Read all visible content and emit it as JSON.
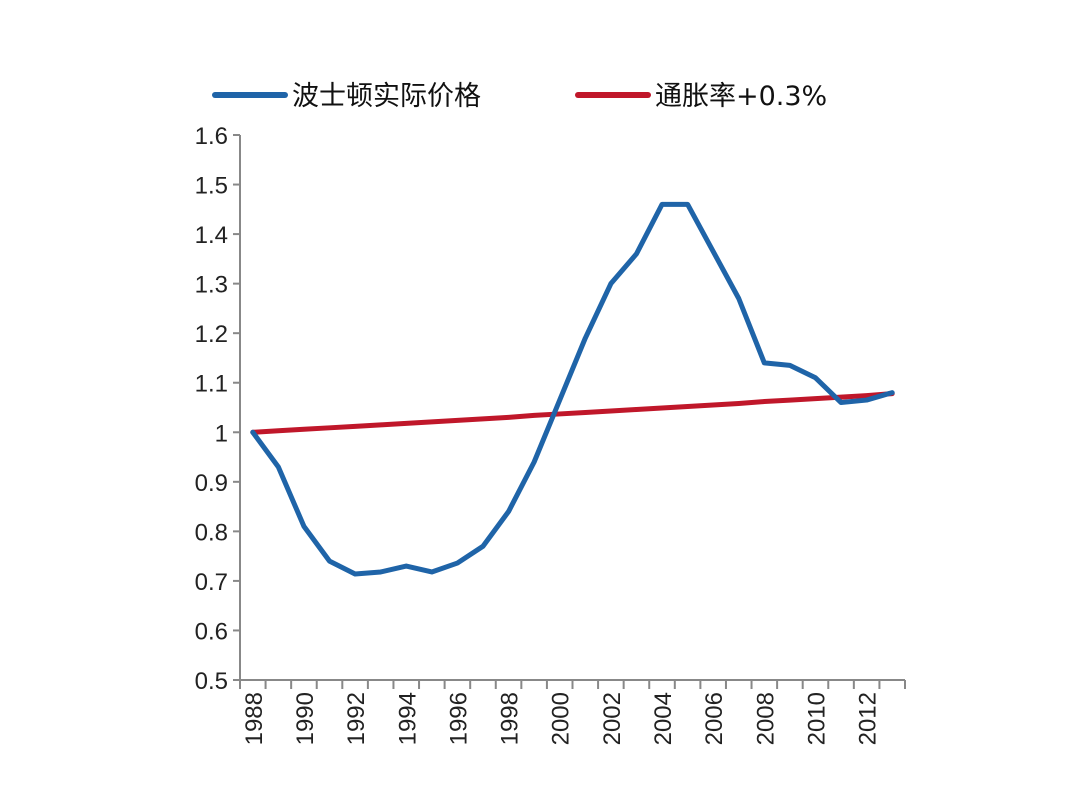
{
  "chart_data": {
    "type": "line",
    "title": "",
    "xlabel": "",
    "ylabel": "",
    "ylim": [
      0.5,
      1.6
    ],
    "yticks": [
      "0.5",
      "0.6",
      "0.7",
      "0.8",
      "0.9",
      "1",
      "1.1",
      "1.2",
      "1.3",
      "1.4",
      "1.5",
      "1.6"
    ],
    "x": [
      1988,
      1989,
      1990,
      1991,
      1992,
      1993,
      1994,
      1995,
      1996,
      1997,
      1998,
      1999,
      2000,
      2001,
      2002,
      2003,
      2004,
      2005,
      2006,
      2007,
      2008,
      2009,
      2010,
      2011,
      2012,
      2013
    ],
    "xtick_labels": [
      "1988",
      "1990",
      "1992",
      "1994",
      "1996",
      "1998",
      "2000",
      "2002",
      "2004",
      "2006",
      "2008",
      "2010",
      "2012"
    ],
    "legend_position": "top",
    "grid": false,
    "series": [
      {
        "name": "波士顿实际价格",
        "color": "#1f64a8",
        "values": [
          1.0,
          0.93,
          0.81,
          0.74,
          0.714,
          0.718,
          0.73,
          0.718,
          0.736,
          0.77,
          0.84,
          0.94,
          1.065,
          1.19,
          1.3,
          1.36,
          1.46,
          1.46,
          1.365,
          1.27,
          1.14,
          1.135,
          1.11,
          1.06,
          1.065,
          1.08
        ]
      },
      {
        "name": "通胀率+0.3%",
        "color": "#c0172a",
        "values": [
          1.0,
          1.003,
          1.006,
          1.009,
          1.012,
          1.015,
          1.018,
          1.021,
          1.024,
          1.027,
          1.03,
          1.034,
          1.037,
          1.04,
          1.043,
          1.046,
          1.049,
          1.052,
          1.055,
          1.058,
          1.062,
          1.065,
          1.068,
          1.071,
          1.074,
          1.078
        ]
      }
    ]
  }
}
